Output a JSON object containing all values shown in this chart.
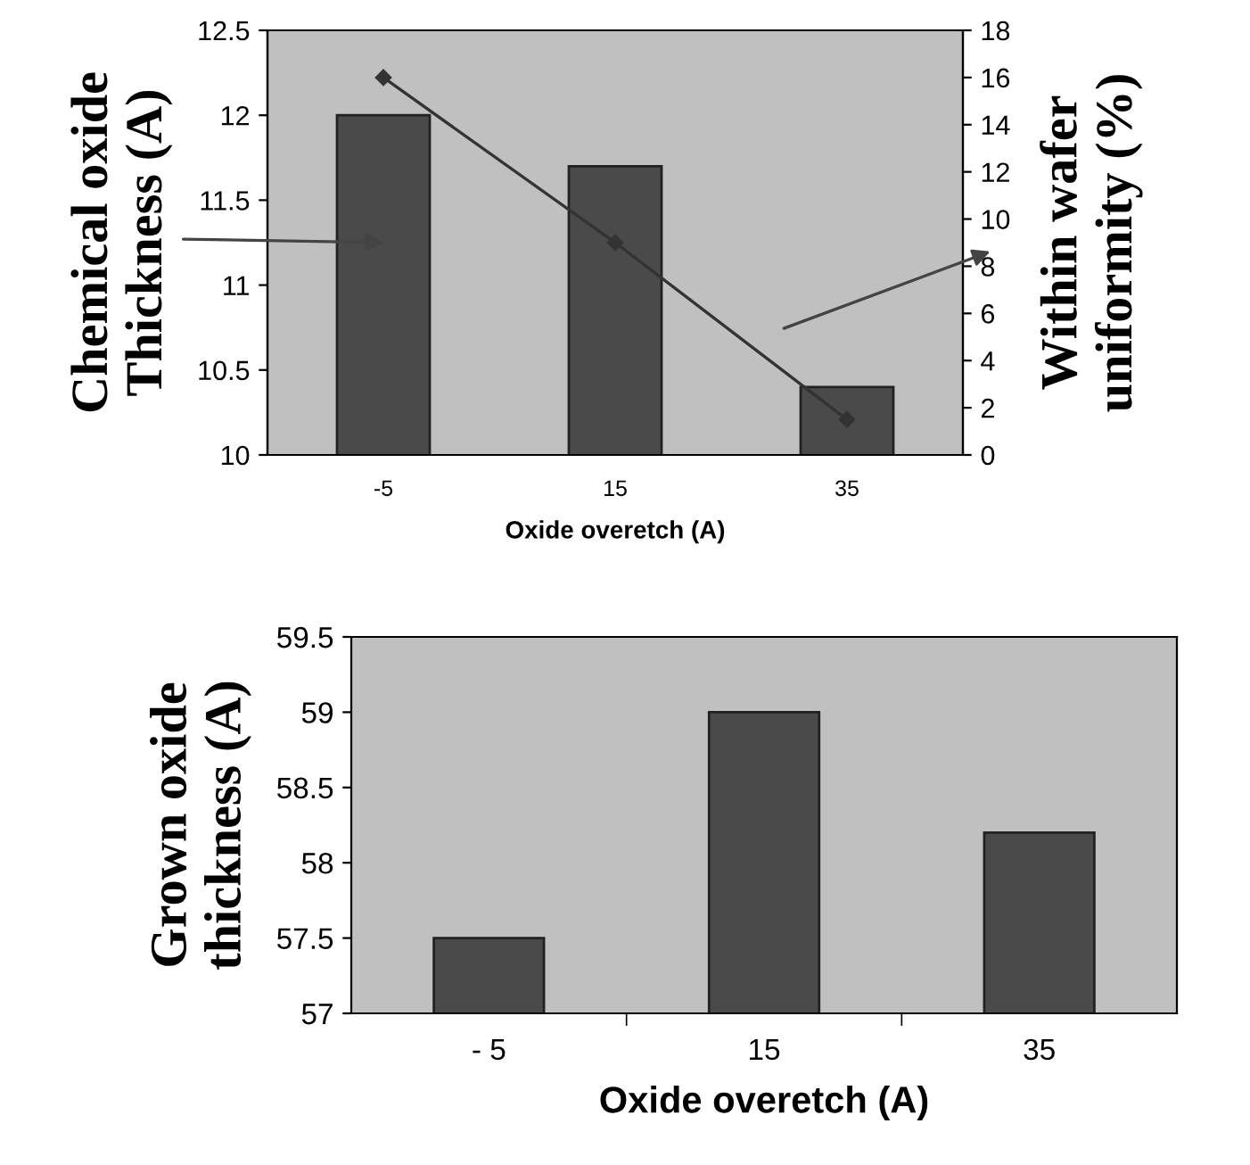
{
  "chart_data": [
    {
      "type": "bar",
      "categories": [
        "-5",
        "15",
        "35"
      ],
      "xlabel": "Oxide overetch (A)",
      "ylabel": "Chemical oxide Thickness (A)",
      "y2label": "Within wafer uniformity (%)",
      "series": [
        {
          "color": "#4a4a4a",
          "values": [
            12.0,
            11.7,
            10.4
          ]
        },
        {
          "type": "line",
          "axis": "y2",
          "color": "#333333",
          "values": [
            16,
            9,
            1.5
          ],
          "marker": "diamond",
          "line_style": "solid"
        }
      ],
      "ylim": [
        10,
        12.5
      ],
      "yticks": [
        10,
        10.5,
        11,
        11.5,
        12,
        12.5
      ],
      "y2lim": [
        0,
        18
      ],
      "y2ticks": [
        0,
        2,
        4,
        6,
        8,
        10,
        12,
        14,
        16,
        18
      ],
      "grid": false,
      "legend": false
    },
    {
      "type": "bar",
      "categories": [
        "- 5",
        "15",
        "35"
      ],
      "xlabel": "Oxide overetch (A)",
      "ylabel": "Grown oxide thickness (A)",
      "series": [
        {
          "color": "#4a4a4a",
          "values": [
            57.5,
            59.0,
            58.2
          ]
        }
      ],
      "ylim": [
        57,
        59.5
      ],
      "yticks": [
        57,
        57.5,
        58,
        58.5,
        59,
        59.5
      ],
      "grid": false,
      "legend": false
    }
  ]
}
